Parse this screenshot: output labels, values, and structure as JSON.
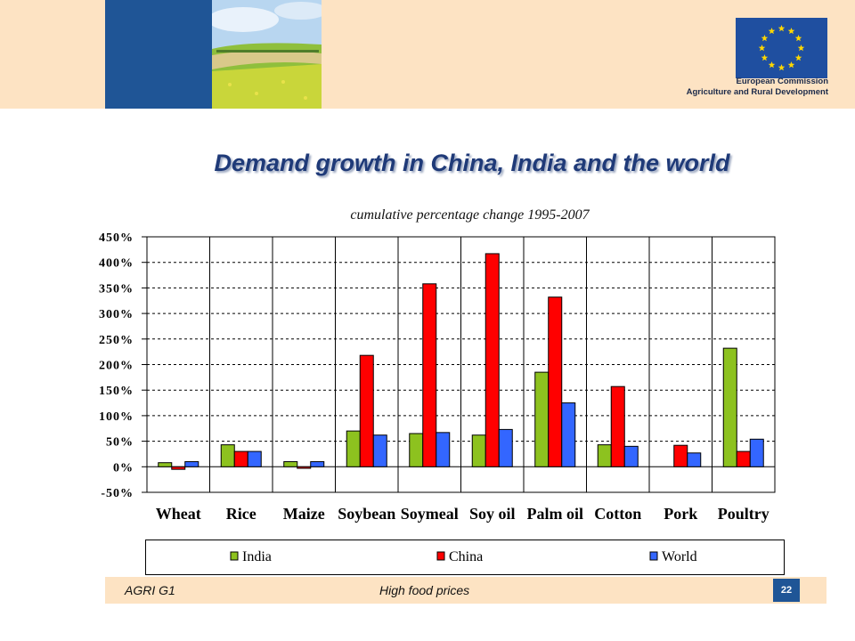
{
  "header": {
    "eu_line1": "European Commission",
    "eu_line2": "Agriculture and Rural Development"
  },
  "slide_title": "Demand growth in China, India and the world",
  "footer": {
    "left": "AGRI G1",
    "center": "High food prices",
    "page_number": "22"
  },
  "colors": {
    "India": "#8dc21f",
    "China": "#ff0000",
    "World": "#3366ff",
    "header_band": "#fde3c3",
    "brand_blue": "#1f5596"
  },
  "chart_data": {
    "type": "bar",
    "title": "cumulative percentage change 1995-2007",
    "categories": [
      "Wheat",
      "Rice",
      "Maize",
      "Soybean",
      "Soymeal",
      "Soy oil",
      "Palm oil",
      "Cotton",
      "Pork",
      "Poultry"
    ],
    "series": [
      {
        "name": "India",
        "values": [
          8,
          43,
          10,
          70,
          65,
          62,
          185,
          43,
          null,
          232
        ]
      },
      {
        "name": "China",
        "values": [
          -5,
          30,
          -3,
          218,
          358,
          417,
          332,
          157,
          42,
          30
        ]
      },
      {
        "name": "World",
        "values": [
          10,
          30,
          10,
          62,
          67,
          73,
          125,
          40,
          27,
          54
        ]
      }
    ],
    "yticks": [
      "450%",
      "400%",
      "350%",
      "300%",
      "250%",
      "200%",
      "150%",
      "100%",
      "50%",
      "0%",
      "-50%"
    ],
    "ylim": [
      -50,
      450
    ],
    "grid": true,
    "legend_position": "bottom"
  }
}
